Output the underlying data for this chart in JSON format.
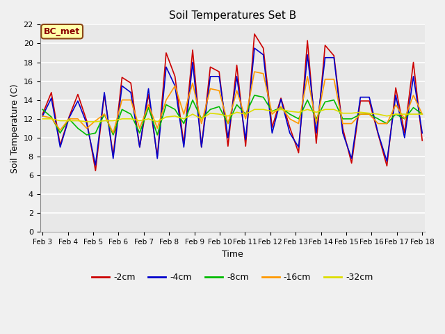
{
  "title": "Soil Temperatures Set B",
  "xlabel": "Time",
  "ylabel": "Soil Temperature (C)",
  "annotation": "BC_met",
  "ylim": [
    0,
    22
  ],
  "yticks": [
    0,
    2,
    4,
    6,
    8,
    10,
    12,
    14,
    16,
    18,
    20,
    22
  ],
  "xtick_labels": [
    "Feb 3",
    "Feb 4",
    "Feb 5",
    "Feb 6",
    "Feb 7",
    "Feb 8",
    "Feb 9",
    "Feb 10",
    "Feb 11",
    "Feb 12",
    "Feb 13",
    "Feb 14",
    "Feb 15",
    "Feb 16",
    "Feb 17",
    "Feb 18"
  ],
  "background_color": "#e8e8e8",
  "grid_color": "#ffffff",
  "series": [
    {
      "label": "-2cm",
      "color": "#cc0000",
      "linewidth": 1.2,
      "values": [
        12.5,
        14.8,
        9.2,
        12.2,
        14.6,
        11.8,
        6.5,
        14.6,
        8.1,
        16.4,
        15.8,
        9.0,
        14.6,
        8.0,
        19.0,
        16.5,
        9.3,
        19.3,
        9.0,
        17.5,
        17.0,
        9.1,
        17.7,
        9.1,
        21.0,
        19.5,
        11.1,
        14.2,
        11.1,
        8.4,
        20.3,
        9.4,
        19.8,
        18.7,
        11.0,
        7.3,
        13.9,
        13.9,
        10.4,
        7.0,
        15.3,
        10.5,
        18.0,
        9.7
      ]
    },
    {
      "label": "-4cm",
      "color": "#0000cc",
      "linewidth": 1.2,
      "values": [
        12.3,
        14.2,
        9.0,
        12.1,
        13.9,
        11.5,
        7.1,
        14.8,
        7.8,
        15.5,
        14.8,
        9.0,
        15.2,
        7.8,
        17.5,
        15.5,
        9.0,
        18.0,
        9.0,
        16.5,
        16.5,
        10.0,
        16.5,
        9.8,
        19.5,
        18.8,
        10.5,
        14.1,
        10.5,
        9.0,
        18.8,
        10.5,
        18.5,
        18.5,
        10.5,
        7.8,
        14.3,
        14.3,
        10.5,
        7.5,
        14.5,
        10.0,
        16.5,
        10.5
      ]
    },
    {
      "label": "-8cm",
      "color": "#00bb00",
      "linewidth": 1.2,
      "values": [
        13.0,
        12.2,
        10.5,
        12.0,
        11.0,
        10.3,
        10.5,
        12.5,
        10.3,
        13.0,
        12.5,
        10.5,
        13.2,
        10.3,
        13.5,
        13.0,
        11.5,
        14.0,
        12.0,
        13.0,
        13.3,
        11.5,
        13.5,
        12.5,
        14.5,
        14.3,
        12.8,
        13.2,
        12.5,
        12.0,
        14.0,
        12.0,
        13.8,
        14.0,
        12.0,
        12.0,
        12.5,
        12.5,
        12.0,
        11.5,
        12.5,
        12.0,
        13.2,
        12.5
      ]
    },
    {
      "label": "-16cm",
      "color": "#ff9900",
      "linewidth": 1.2,
      "values": [
        12.3,
        12.1,
        10.8,
        12.0,
        12.0,
        11.0,
        11.8,
        12.5,
        10.5,
        14.0,
        14.0,
        11.0,
        13.5,
        11.0,
        14.0,
        15.5,
        12.5,
        15.8,
        11.5,
        15.2,
        15.0,
        11.5,
        15.0,
        12.0,
        17.0,
        16.8,
        12.5,
        13.3,
        12.0,
        11.5,
        16.5,
        11.5,
        16.2,
        16.2,
        11.5,
        11.5,
        12.5,
        12.5,
        11.5,
        11.5,
        13.5,
        12.0,
        14.5,
        12.5
      ]
    },
    {
      "label": "-32cm",
      "color": "#dddd00",
      "linewidth": 1.2,
      "values": [
        12.0,
        12.0,
        11.8,
        11.8,
        11.8,
        11.7,
        11.7,
        11.8,
        11.8,
        12.0,
        12.0,
        11.8,
        12.0,
        11.7,
        12.2,
        12.3,
        12.0,
        12.5,
        12.0,
        12.6,
        12.5,
        12.3,
        12.7,
        12.5,
        13.0,
        13.0,
        12.8,
        13.0,
        12.8,
        12.7,
        13.0,
        12.7,
        13.0,
        13.0,
        12.6,
        12.6,
        12.7,
        12.6,
        12.5,
        12.3,
        12.5,
        12.5,
        12.5,
        12.5
      ]
    }
  ]
}
